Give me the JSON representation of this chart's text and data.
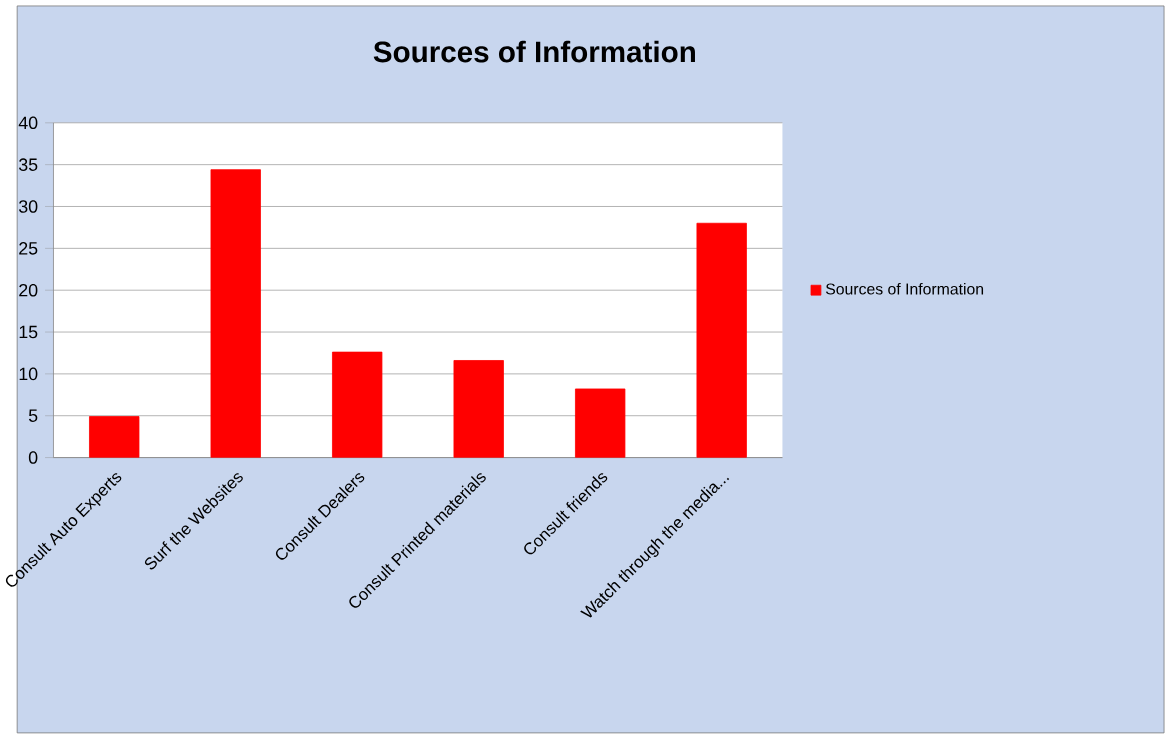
{
  "chart_data": {
    "type": "bar",
    "title": "Sources of Information",
    "categories": [
      "Consult Auto Experts",
      "Surf the Websites",
      "Consult Dealers",
      "Consult Printed materials",
      "Consult friends",
      "Watch through the media..."
    ],
    "series": [
      {
        "name": "Sources of Information",
        "color": "#ff0000",
        "values": [
          4.9,
          34.4,
          12.6,
          11.6,
          8.2,
          28.0
        ]
      }
    ],
    "ylim": [
      0,
      40
    ],
    "yticks": [
      0,
      5,
      10,
      15,
      20,
      25,
      30,
      35,
      40
    ],
    "grid": "y",
    "legend": "right"
  }
}
